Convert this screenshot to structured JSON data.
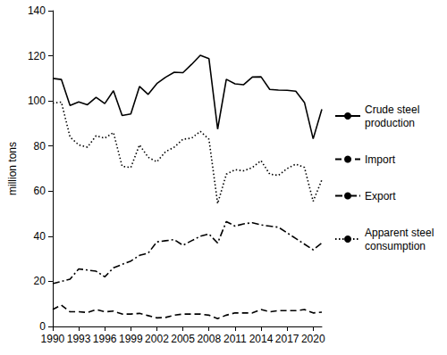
{
  "chart_data": {
    "type": "line",
    "y_label": "million tons",
    "x": [
      1990,
      1991,
      1992,
      1993,
      1994,
      1995,
      1996,
      1997,
      1998,
      1999,
      2000,
      2001,
      2002,
      2003,
      2004,
      2005,
      2006,
      2007,
      2008,
      2009,
      2010,
      2011,
      2012,
      2013,
      2014,
      2015,
      2016,
      2017,
      2018,
      2019,
      2020,
      2021
    ],
    "xlim": [
      1990,
      2021
    ],
    "xticks": [
      1990,
      1993,
      1996,
      1999,
      2002,
      2005,
      2008,
      2011,
      2014,
      2017,
      2020
    ],
    "ylim": [
      0,
      140
    ],
    "yticks": [
      0,
      20,
      40,
      60,
      80,
      100,
      120,
      140
    ],
    "grid": false,
    "legend": "right",
    "series": [
      {
        "name": "Crude steel production",
        "color": "#000000",
        "line_style": "solid",
        "values": [
          110,
          109.5,
          98,
          99.6,
          98.3,
          101.6,
          98.8,
          104.5,
          93.5,
          94.2,
          106.4,
          102.9,
          107.7,
          110.5,
          112.7,
          112.5,
          116.2,
          120.2,
          118.7,
          87.5,
          109.6,
          107.6,
          107.2,
          110.6,
          110.7,
          105.1,
          104.8,
          104.7,
          104.3,
          99.3,
          83.2,
          96.3
        ]
      },
      {
        "name": "Import",
        "color": "#000000",
        "line_style": "dashed",
        "values": [
          7.5,
          9.5,
          6.5,
          6.5,
          6.2,
          7.5,
          6.5,
          6.8,
          5.5,
          5.5,
          5.8,
          4.8,
          3.8,
          4.0,
          5.0,
          5.5,
          5.5,
          5.5,
          5.0,
          3.5,
          5.0,
          6.0,
          6.0,
          6.0,
          7.5,
          6.5,
          7.0,
          7.0,
          7.0,
          7.5,
          6.0,
          6.3
        ]
      },
      {
        "name": "Export",
        "color": "#000000",
        "line_style": "dashdot",
        "values": [
          19,
          20,
          21,
          25.5,
          25,
          24.5,
          22,
          26,
          27.5,
          29,
          31.5,
          32.5,
          37.5,
          38,
          38.5,
          36,
          38,
          40,
          41,
          37,
          46.5,
          44.5,
          45.5,
          46,
          45,
          44.5,
          44,
          41.5,
          39,
          36.5,
          34,
          37
        ]
      },
      {
        "name": "Apparent steel consumption",
        "color": "#000000",
        "line_style": "dotted",
        "values": [
          99,
          99.5,
          84,
          80.5,
          79.5,
          84.5,
          83.5,
          86,
          71,
          70.5,
          80.5,
          75,
          73,
          77.5,
          79.5,
          83,
          83.5,
          86.5,
          83,
          54.5,
          67.5,
          69.5,
          69,
          70.5,
          73.5,
          67.5,
          67,
          70,
          72,
          70.5,
          55.5,
          65
        ]
      }
    ]
  }
}
